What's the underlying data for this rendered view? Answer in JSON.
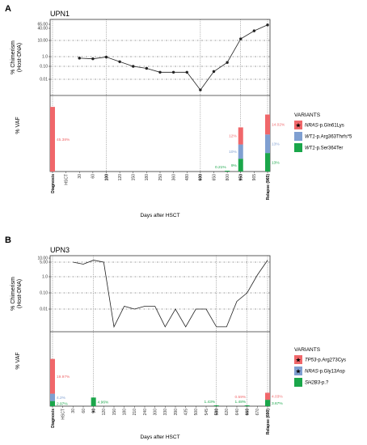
{
  "colors": {
    "red": "#f0676a",
    "blue": "#7f9fd1",
    "green": "#1aa64a"
  },
  "chart_data": [
    {
      "type": "line",
      "panel": "A",
      "title": "UPN1",
      "ylabel_top": "% Chimerism",
      "ylabel_top2": "(Host-DNA)",
      "ylabel_bottom": "% VAF",
      "xlabel": "Days after HSCT",
      "yticks": [
        "65.00",
        "40.00",
        "10.00",
        "1.0",
        "0.10",
        "0.01"
      ],
      "ylim_log": [
        0.001,
        100
      ],
      "xticks": [
        {
          "label": "Diagnosis",
          "bold": true
        },
        {
          "label": "HSCT",
          "bold": false
        },
        {
          "label": "30",
          "bold": false
        },
        {
          "label": "60",
          "bold": false
        },
        {
          "label": "100",
          "bold": true
        },
        {
          "label": "120",
          "bold": false
        },
        {
          "label": "150",
          "bold": false
        },
        {
          "label": "180",
          "bold": false
        },
        {
          "label": "250",
          "bold": false
        },
        {
          "label": "360",
          "bold": false
        },
        {
          "label": "480",
          "bold": false
        },
        {
          "label": "600",
          "bold": true
        },
        {
          "label": "650",
          "bold": false
        },
        {
          "label": "800",
          "bold": false
        },
        {
          "label": "950",
          "bold": true
        },
        {
          "label": "965",
          "bold": false
        },
        {
          "label": "Relapse (965)",
          "bold": true
        }
      ],
      "chimerism": [
        {
          "x": "30",
          "y": 0.7
        },
        {
          "x": "60",
          "y": 0.6
        },
        {
          "x": "100",
          "y": 0.9
        },
        {
          "x": "120",
          "y": 0.3
        },
        {
          "x": "150",
          "y": 0.1
        },
        {
          "x": "180",
          "y": 0.07
        },
        {
          "x": "250",
          "y": 0.035
        },
        {
          "x": "360",
          "y": 0.035
        },
        {
          "x": "480",
          "y": 0.035
        },
        {
          "x": "600",
          "y": 0.0015
        },
        {
          "x": "650",
          "y": 0.04
        },
        {
          "x": "800",
          "y": 0.25
        },
        {
          "x": "950",
          "y": 12
        },
        {
          "x": "965",
          "y": 30
        },
        {
          "x": "Relapse (965)",
          "y": 60
        }
      ],
      "reference_lines": [
        10,
        1,
        0.1,
        0.01
      ],
      "dotted_x": [
        "Diagnosis",
        "100",
        "600",
        "950",
        "Relapse (965)"
      ],
      "vaf_max": 50,
      "vaf_bars": [
        {
          "x": "Diagnosis",
          "segments": [
            {
              "variant": 0,
              "value": 45.38,
              "label": "45.38%"
            }
          ]
        },
        {
          "x": "950",
          "segments": [
            {
              "variant": 2,
              "value": 9,
              "label": "9%"
            },
            {
              "variant": 1,
              "value": 10,
              "label": "10%"
            },
            {
              "variant": 0,
              "value": 12,
              "label": "12%"
            }
          ]
        },
        {
          "x": "Relapse (965)",
          "segments": [
            {
              "variant": 2,
              "value": 13,
              "label": "13%"
            },
            {
              "variant": 1,
              "value": 13,
              "label": "13%"
            },
            {
              "variant": 0,
              "value": 14.02,
              "label": "14.02%"
            }
          ]
        }
      ],
      "vaf_small_labels": [
        {
          "x": "800",
          "label": "0.21%",
          "variant": 2
        }
      ],
      "legend_title": "VARIANTS",
      "legend": [
        {
          "gene": "NRAS",
          "protein": "-p.Gln61Lys",
          "star": true
        },
        {
          "gene": "WT1",
          "protein": "-p.Arg363Thrfs*5",
          "star": false
        },
        {
          "gene": "WT1",
          "protein": "-p.Ser364Ter",
          "star": false
        }
      ]
    },
    {
      "type": "line",
      "panel": "B",
      "title": "UPN3",
      "ylabel_top": "% Chimerism",
      "ylabel_top2": "(Host-DNA)",
      "ylabel_bottom": "% VAF",
      "xlabel": "Days after HSCT",
      "yticks": [
        "10.00",
        "5.00",
        "1.0",
        "0.10",
        "0.01"
      ],
      "ylim_log": [
        0.0005,
        12
      ],
      "xticks": [
        {
          "label": "Diagnosis",
          "bold": true
        },
        {
          "label": "HSCT",
          "bold": false
        },
        {
          "label": "30",
          "bold": false
        },
        {
          "label": "60",
          "bold": false
        },
        {
          "label": "90",
          "bold": true
        },
        {
          "label": "120",
          "bold": false
        },
        {
          "label": "150",
          "bold": false
        },
        {
          "label": "180",
          "bold": false
        },
        {
          "label": "210",
          "bold": false
        },
        {
          "label": "240",
          "bold": false
        },
        {
          "label": "300",
          "bold": false
        },
        {
          "label": "330",
          "bold": false
        },
        {
          "label": "390",
          "bold": false
        },
        {
          "label": "435",
          "bold": false
        },
        {
          "label": "500",
          "bold": false
        },
        {
          "label": "545",
          "bold": false
        },
        {
          "label": "580",
          "bold": true
        },
        {
          "label": "620",
          "bold": false
        },
        {
          "label": "640",
          "bold": false
        },
        {
          "label": "660",
          "bold": true
        },
        {
          "label": "670",
          "bold": false
        },
        {
          "label": "Relapse (690)",
          "bold": true
        }
      ],
      "chimerism": [
        {
          "x": "30",
          "y": 5
        },
        {
          "x": "60",
          "y": 4
        },
        {
          "x": "90",
          "y": 7
        },
        {
          "x": "120",
          "y": 5
        },
        {
          "x": "150",
          "y": 0.0008
        },
        {
          "x": "180",
          "y": 0.015
        },
        {
          "x": "210",
          "y": 0.01
        },
        {
          "x": "240",
          "y": 0.015
        },
        {
          "x": "300",
          "y": 0.015
        },
        {
          "x": "330",
          "y": 0.0008
        },
        {
          "x": "390",
          "y": 0.01
        },
        {
          "x": "435",
          "y": 0.0008
        },
        {
          "x": "500",
          "y": 0.01
        },
        {
          "x": "545",
          "y": 0.01
        },
        {
          "x": "580",
          "y": 0.0008
        },
        {
          "x": "620",
          "y": 0.0008
        },
        {
          "x": "640",
          "y": 0.03
        },
        {
          "x": "660",
          "y": 0.1
        },
        {
          "x": "670",
          "y": 1.2
        },
        {
          "x": "Relapse (690)",
          "y": 7
        }
      ],
      "reference_lines": [
        5,
        1,
        0.1,
        0.01
      ],
      "dotted_x": [
        "Diagnosis",
        "90",
        "580",
        "660",
        "Relapse (690)"
      ],
      "vaf_max": 40,
      "vaf_bars": [
        {
          "x": "Diagnosis",
          "segments": [
            {
              "variant": 2,
              "value": 2.97,
              "label": "2.97%"
            },
            {
              "variant": 1,
              "value": 4.2,
              "label": "4.2%"
            },
            {
              "variant": 0,
              "value": 19.97,
              "label": "19.97%"
            }
          ]
        },
        {
          "x": "90",
          "segments": [
            {
              "variant": 2,
              "value": 4.96,
              "label": "4.96%"
            }
          ]
        },
        {
          "x": "Relapse (690)",
          "segments": [
            {
              "variant": 2,
              "value": 3.67,
              "label": "3.67%"
            },
            {
              "variant": 0,
              "value": 4.03,
              "label": "4.03%"
            }
          ]
        }
      ],
      "vaf_small_labels": [
        {
          "x": "580",
          "label": "1.43%",
          "variant": 2
        },
        {
          "x": "660",
          "label": "0.59%",
          "variant": 0
        },
        {
          "x": "660",
          "label": "1.48%",
          "variant": 2
        }
      ],
      "legend_title": "VARIANTS",
      "legend": [
        {
          "gene": "TP53",
          "protein": "-p.Arg273Cys",
          "star": true
        },
        {
          "gene": "NRAS",
          "protein": "-p.Gly13Asp",
          "star": true
        },
        {
          "gene": "SH2B3",
          "protein": "-p.?",
          "star": false
        }
      ]
    }
  ]
}
